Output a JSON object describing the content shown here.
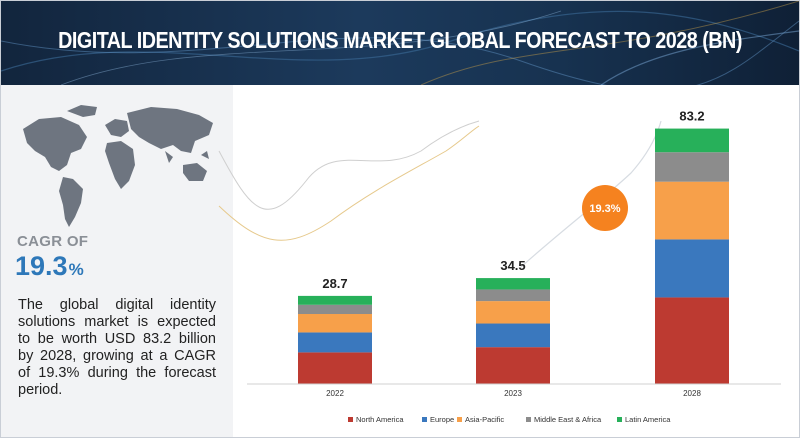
{
  "header": {
    "title": "DIGITAL IDENTITY SOLUTIONS MARKET GLOBAL FORECAST TO 2028 (BN)"
  },
  "cagr": {
    "label": "CAGR OF",
    "value": "19.3",
    "unit": "%"
  },
  "summary": "The global digital identity solutions market is expected to be worth USD 83.2 billion by 2028, growing at a CAGR of 19.3% during the forecast period.",
  "badge": "19.3%",
  "colors": {
    "accent": "#2e78b9",
    "badge": "#f5821f"
  },
  "chart_data": {
    "type": "bar",
    "stacked": true,
    "categories": [
      "2022",
      "2023",
      "2028"
    ],
    "totals": [
      28.7,
      34.5,
      83.2
    ],
    "total_labels": [
      "28.7",
      "34.5",
      "83.2"
    ],
    "series": [
      {
        "name": "North America",
        "color": "#bd3a31",
        "values": [
          10.3,
          12.0,
          28.2
        ]
      },
      {
        "name": "Europe",
        "color": "#3a78be",
        "values": [
          6.5,
          7.7,
          18.9
        ]
      },
      {
        "name": "Asia-Pacific",
        "color": "#f7a04a",
        "values": [
          6.0,
          7.3,
          18.8
        ]
      },
      {
        "name": "Middle East & Africa",
        "color": "#8c8c8c",
        "values": [
          3.0,
          3.8,
          9.6
        ]
      },
      {
        "name": "Latin America",
        "color": "#27b05a",
        "values": [
          2.9,
          3.7,
          7.7
        ]
      }
    ],
    "legend_position": "bottom",
    "grid": false
  }
}
